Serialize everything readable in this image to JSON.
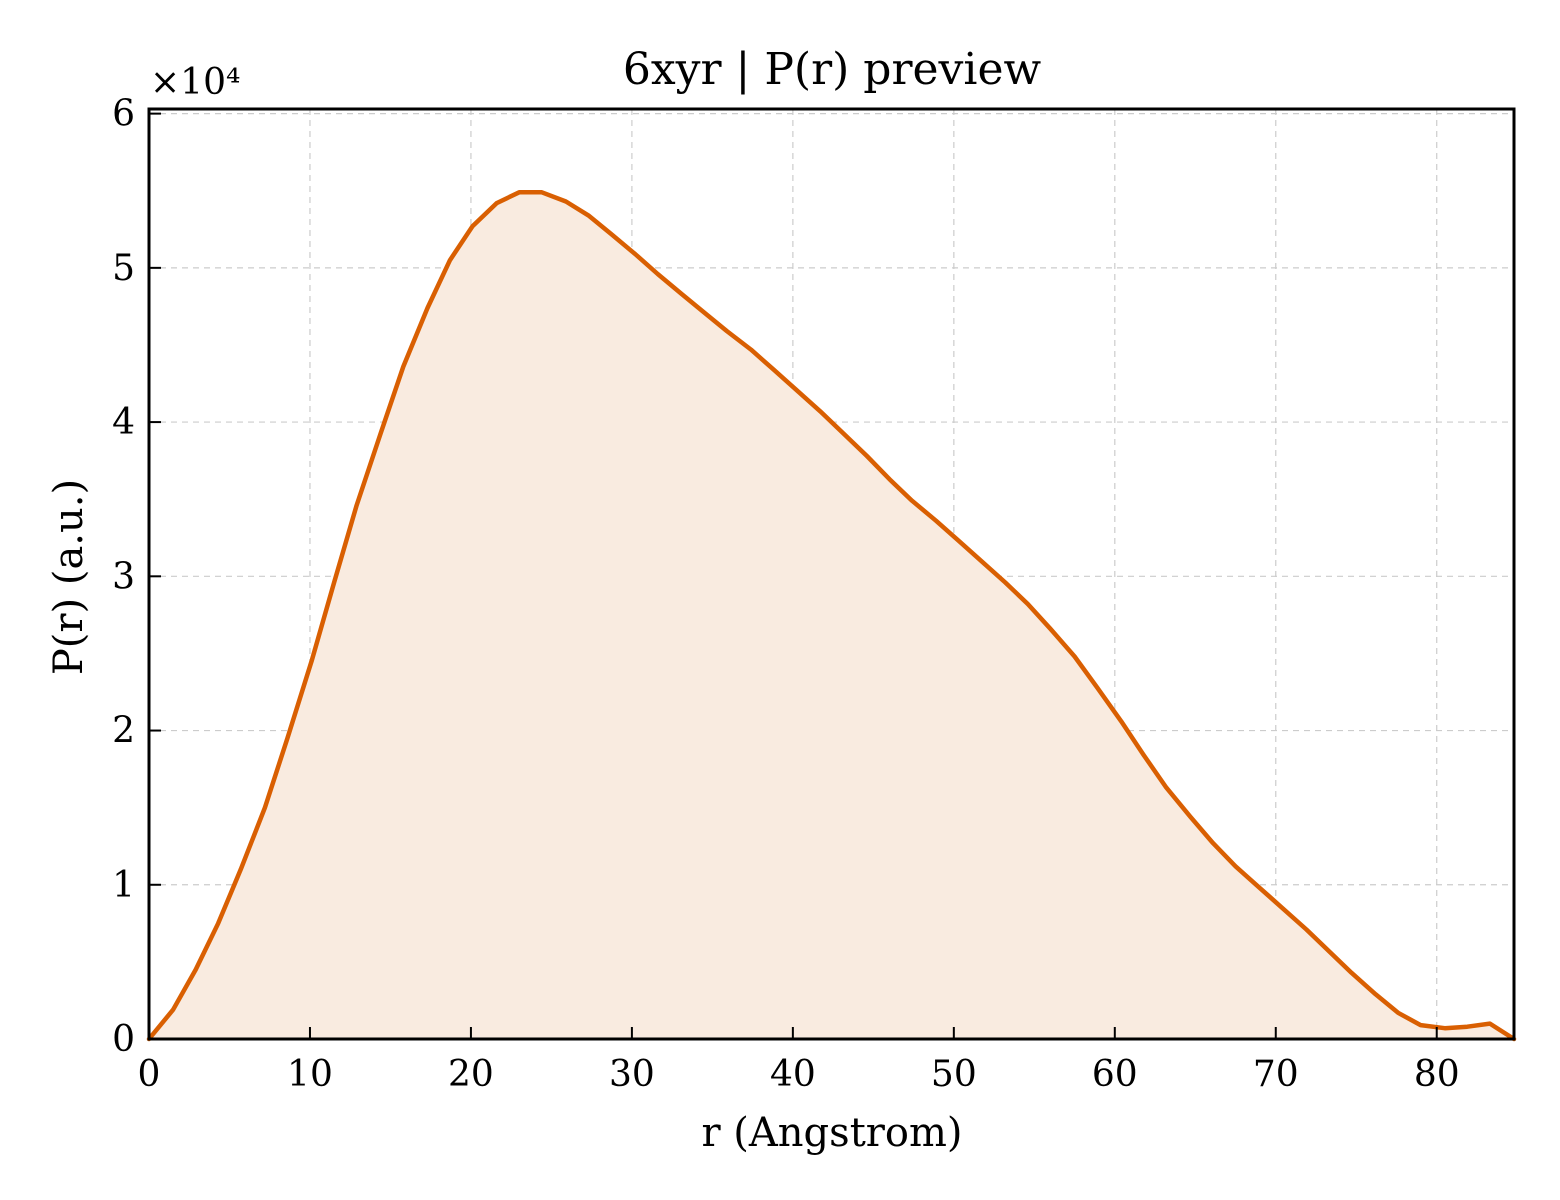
{
  "chart_data": {
    "type": "area",
    "title": "6xyr | P(r) preview",
    "xlabel": "r (Angstrom)",
    "ylabel": "P(r) (a.u.)",
    "y_multiplier_label": "×10⁴",
    "xlim": [
      0,
      84.8
    ],
    "ylim": [
      0,
      6.03
    ],
    "xticks": [
      0,
      10,
      20,
      30,
      40,
      50,
      60,
      70,
      80
    ],
    "yticks": [
      0,
      1,
      2,
      3,
      4,
      5,
      6
    ],
    "grid": true,
    "line_color": "#d95f02",
    "fill_color": "#f9ebe0",
    "series": [
      {
        "x": [
          0,
          1.5,
          2.9,
          4.3,
          5.7,
          7.2,
          8.6,
          10.1,
          11.5,
          12.9,
          14.4,
          15.8,
          17.3,
          18.7,
          20.1,
          21.6,
          23.0,
          24.4,
          25.9,
          27.3,
          28.7,
          30.2,
          31.6,
          33.1,
          34.5,
          35.9,
          37.4,
          38.8,
          40.2,
          41.7,
          43.1,
          44.6,
          46.0,
          47.4,
          48.9,
          50.3,
          51.7,
          53.2,
          54.6,
          56.0,
          57.5,
          58.9,
          60.4,
          61.8,
          63.2,
          64.7,
          66.1,
          67.5,
          69.0,
          70.4,
          71.9,
          73.3,
          74.7,
          76.2,
          77.6,
          79.0,
          80.5,
          81.9,
          83.3,
          84.8
        ],
        "y": [
          0,
          0.19,
          0.45,
          0.75,
          1.1,
          1.5,
          1.95,
          2.45,
          2.96,
          3.46,
          3.93,
          4.36,
          4.74,
          5.05,
          5.27,
          5.42,
          5.49,
          5.49,
          5.43,
          5.34,
          5.22,
          5.09,
          4.96,
          4.83,
          4.71,
          4.59,
          4.47,
          4.34,
          4.21,
          4.07,
          3.93,
          3.78,
          3.63,
          3.49,
          3.36,
          3.23,
          3.1,
          2.96,
          2.82,
          2.66,
          2.48,
          2.28,
          2.06,
          1.84,
          1.63,
          1.44,
          1.27,
          1.12,
          0.98,
          0.85,
          0.71,
          0.57,
          0.43,
          0.29,
          0.17,
          0.09,
          0.07,
          0.08,
          0.1,
          0.0
        ]
      }
    ]
  }
}
